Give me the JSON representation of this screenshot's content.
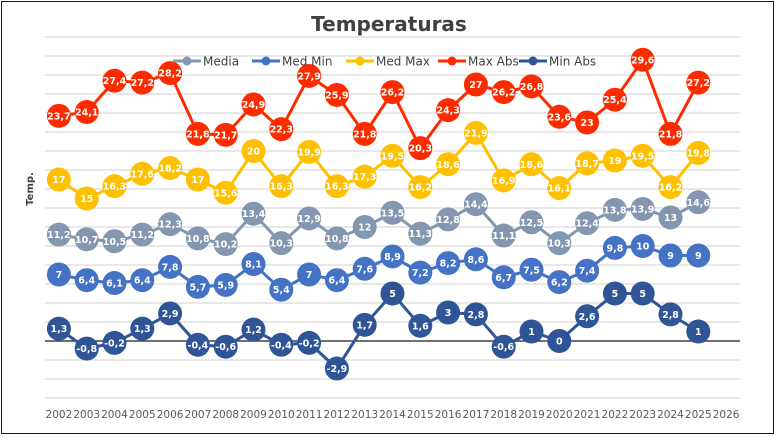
{
  "chart_data": {
    "type": "line",
    "title": "Temperaturas",
    "xlabel": "",
    "ylabel": "Temp.",
    "ylim": [
      -6,
      32
    ],
    "grid_step": 2,
    "grid": true,
    "legend_position": "top",
    "categories": [
      "2002",
      "2003",
      "2004",
      "2005",
      "2006",
      "2007",
      "2008",
      "2009",
      "2010",
      "2011",
      "2012",
      "2013",
      "2014",
      "2015",
      "2016",
      "2017",
      "2018",
      "2019",
      "2020",
      "2021",
      "2022",
      "2023",
      "2024",
      "2025",
      "2026"
    ],
    "series": [
      {
        "name": "Media",
        "color": "#8497b0",
        "values": [
          11.2,
          10.7,
          10.5,
          11.2,
          12.3,
          10.8,
          10.2,
          13.4,
          10.3,
          12.9,
          10.8,
          12,
          13.5,
          11.3,
          12.8,
          14.4,
          11.1,
          12.5,
          10.3,
          12.4,
          13.8,
          13.9,
          13,
          14.6,
          null
        ],
        "labels": [
          "11,2",
          "10,7",
          "10,5",
          "11,2",
          "12,3",
          "10,8",
          "10,2",
          "13,4",
          "10,3",
          "12,9",
          "10,8",
          "12",
          "13,5",
          "11,3",
          "12,8",
          "14,4",
          "11,1",
          "12,5",
          "10,3",
          "12,4",
          "13,8",
          "13,9",
          "13",
          "14,6",
          null
        ]
      },
      {
        "name": "Med Min",
        "color": "#4472c4",
        "values": [
          7,
          6.4,
          6.1,
          6.4,
          7.8,
          5.7,
          5.9,
          8.1,
          5.4,
          7,
          6.4,
          7.6,
          8.9,
          7.2,
          8.2,
          8.6,
          6.7,
          7.5,
          6.2,
          7.4,
          9.8,
          10,
          9,
          9,
          null
        ],
        "labels": [
          "7",
          "6,4",
          "6,1",
          "6,4",
          "7,8",
          "5,7",
          "5,9",
          "8,1",
          "5,4",
          "7",
          "6,4",
          "7,6",
          "8,9",
          "7,2",
          "8,2",
          "8,6",
          "6,7",
          "7,5",
          "6,2",
          "7,4",
          "9,8",
          "10",
          "9",
          "9",
          null
        ]
      },
      {
        "name": "Med Max",
        "color": "#ffc000",
        "values": [
          17,
          15,
          16.3,
          17.6,
          18.2,
          17,
          15.6,
          20,
          16.3,
          19.9,
          16.3,
          17.3,
          19.5,
          16.2,
          18.6,
          21.9,
          16.9,
          18.6,
          16.1,
          18.7,
          19,
          19.5,
          16.2,
          19.8,
          null
        ],
        "labels": [
          "17",
          "15",
          "16,3",
          "17,6",
          "18,2",
          "17",
          "15,6",
          "20",
          "16,3",
          "19,9",
          "16,3",
          "17,3",
          "19,5",
          "16,2",
          "18,6",
          "21,9",
          "16,9",
          "18,6",
          "16,1",
          "18,7",
          "19",
          "19,5",
          "16,2",
          "19,8",
          null
        ]
      },
      {
        "name": "Max Abs",
        "color": "#ff2b00",
        "values": [
          23.7,
          24.1,
          27.4,
          27.2,
          28.2,
          21.8,
          21.7,
          24.9,
          22.3,
          27.9,
          25.9,
          21.8,
          26.2,
          20.3,
          24.3,
          27,
          26.2,
          26.8,
          23.6,
          23,
          25.4,
          29.6,
          21.8,
          27.2,
          null
        ],
        "labels": [
          "23,7",
          "24,1",
          "27,4",
          "27,2",
          "28,2",
          "21,8",
          "21,7",
          "24,9",
          "22,3",
          "27,9",
          "25,9",
          "21,8",
          "26,2",
          "20,3",
          "24,3",
          "27",
          "26,2",
          "26,8",
          "23,6",
          "23",
          "25,4",
          "29,6",
          "21,8",
          "27,2",
          null
        ]
      },
      {
        "name": "Min Abs",
        "color": "#2f5597",
        "values": [
          1.3,
          -0.8,
          -0.2,
          1.3,
          2.9,
          -0.4,
          -0.6,
          1.2,
          -0.4,
          -0.2,
          -2.9,
          1.7,
          5,
          1.6,
          3,
          2.8,
          -0.6,
          1,
          0,
          2.6,
          5,
          5,
          2.8,
          1,
          null
        ],
        "labels": [
          "1,3",
          "-0,8",
          "-0,2",
          "1,3",
          "2,9",
          "-0,4",
          "-0,6",
          "1,2",
          "-0,4",
          "-0,2",
          "-2,9",
          "1,7",
          "5",
          "1,6",
          "3",
          "2,8",
          "-0,6",
          "1",
          "0",
          "2,6",
          "5",
          "5",
          "2,8",
          "1",
          null
        ]
      }
    ]
  }
}
